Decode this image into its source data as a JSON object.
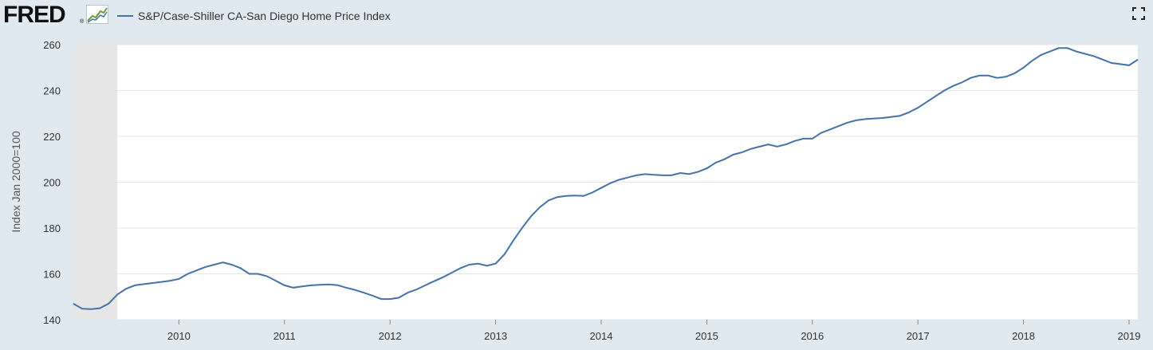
{
  "header": {
    "logo_text": "FRED",
    "logo_reg": "®",
    "logo_icon": "trend-chart-icon",
    "fullscreen_icon": "fullscreen-icon"
  },
  "colors": {
    "series": "#4572a7",
    "background": "#e1e9f0",
    "plot": "#ffffff",
    "recession": "#e6e6e6",
    "grid": "#e6e6e6"
  },
  "chart_data": {
    "type": "line",
    "title": "",
    "xlabel": "",
    "ylabel": "Index Jan 2000=100",
    "ylim": [
      140,
      260
    ],
    "yticks": [
      140,
      160,
      180,
      200,
      220,
      240,
      260
    ],
    "xlim": [
      "2009-01",
      "2019-02"
    ],
    "xtick_labels": [
      "2010",
      "2011",
      "2012",
      "2013",
      "2014",
      "2015",
      "2016",
      "2017",
      "2018",
      "2019"
    ],
    "grid": "horizontal",
    "legend_position": "top-left",
    "recession_shading": [
      {
        "start": "2009-01",
        "end": "2009-06"
      }
    ],
    "series": [
      {
        "name": "S&P/Case-Shiller CA-San Diego Home Price Index",
        "x": [
          "2009-01",
          "2009-02",
          "2009-03",
          "2009-04",
          "2009-05",
          "2009-06",
          "2009-07",
          "2009-08",
          "2009-09",
          "2009-10",
          "2009-11",
          "2009-12",
          "2010-01",
          "2010-02",
          "2010-03",
          "2010-04",
          "2010-05",
          "2010-06",
          "2010-07",
          "2010-08",
          "2010-09",
          "2010-10",
          "2010-11",
          "2010-12",
          "2011-01",
          "2011-02",
          "2011-03",
          "2011-04",
          "2011-05",
          "2011-06",
          "2011-07",
          "2011-08",
          "2011-09",
          "2011-10",
          "2011-11",
          "2011-12",
          "2012-01",
          "2012-02",
          "2012-03",
          "2012-04",
          "2012-05",
          "2012-06",
          "2012-07",
          "2012-08",
          "2012-09",
          "2012-10",
          "2012-11",
          "2012-12",
          "2013-01",
          "2013-02",
          "2013-03",
          "2013-04",
          "2013-05",
          "2013-06",
          "2013-07",
          "2013-08",
          "2013-09",
          "2013-10",
          "2013-11",
          "2013-12",
          "2014-01",
          "2014-02",
          "2014-03",
          "2014-04",
          "2014-05",
          "2014-06",
          "2014-07",
          "2014-08",
          "2014-09",
          "2014-10",
          "2014-11",
          "2014-12",
          "2015-01",
          "2015-02",
          "2015-03",
          "2015-04",
          "2015-05",
          "2015-06",
          "2015-07",
          "2015-08",
          "2015-09",
          "2015-10",
          "2015-11",
          "2015-12",
          "2016-01",
          "2016-02",
          "2016-03",
          "2016-04",
          "2016-05",
          "2016-06",
          "2016-07",
          "2016-08",
          "2016-09",
          "2016-10",
          "2016-11",
          "2016-12",
          "2017-01",
          "2017-02",
          "2017-03",
          "2017-04",
          "2017-05",
          "2017-06",
          "2017-07",
          "2017-08",
          "2017-09",
          "2017-10",
          "2017-11",
          "2017-12",
          "2018-01",
          "2018-02",
          "2018-03",
          "2018-04",
          "2018-05",
          "2018-06",
          "2018-07",
          "2018-08",
          "2018-09",
          "2018-10",
          "2018-11",
          "2018-12",
          "2019-01",
          "2019-02"
        ],
        "values": [
          147.0,
          144.8,
          144.6,
          145.0,
          147.0,
          151.0,
          153.5,
          155.0,
          155.5,
          156.0,
          156.5,
          157.0,
          157.8,
          160.0,
          161.5,
          163.0,
          164.0,
          165.0,
          164.0,
          162.5,
          160.0,
          160.0,
          159.0,
          157.0,
          155.0,
          154.0,
          154.5,
          155.0,
          155.2,
          155.4,
          155.1,
          154.0,
          153.0,
          151.8,
          150.5,
          149.0,
          149.0,
          149.6,
          151.8,
          153.2,
          155.0,
          156.8,
          158.5,
          160.5,
          162.5,
          164.0,
          164.5,
          163.5,
          164.5,
          168.5,
          174.5,
          180.0,
          185.0,
          189.0,
          192.0,
          193.5,
          194.0,
          194.2,
          194.0,
          195.5,
          197.5,
          199.5,
          201.0,
          202.0,
          203.0,
          203.5,
          203.2,
          203.0,
          203.0,
          204.0,
          203.5,
          204.5,
          206.0,
          208.5,
          210.0,
          212.0,
          213.0,
          214.5,
          215.5,
          216.5,
          215.5,
          216.5,
          218.0,
          219.0,
          219.0,
          221.5,
          223.0,
          224.5,
          226.0,
          227.0,
          227.5,
          227.8,
          228.0,
          228.5,
          229.0,
          230.5,
          232.5,
          235.0,
          237.5,
          240.0,
          242.0,
          243.5,
          245.5,
          246.5,
          246.5,
          245.5,
          246.0,
          247.5,
          250.0,
          253.0,
          255.5,
          257.0,
          258.5,
          258.5,
          257.0,
          256.0,
          255.0,
          253.5,
          252.0,
          251.5,
          251.0,
          253.5
        ]
      }
    ]
  }
}
